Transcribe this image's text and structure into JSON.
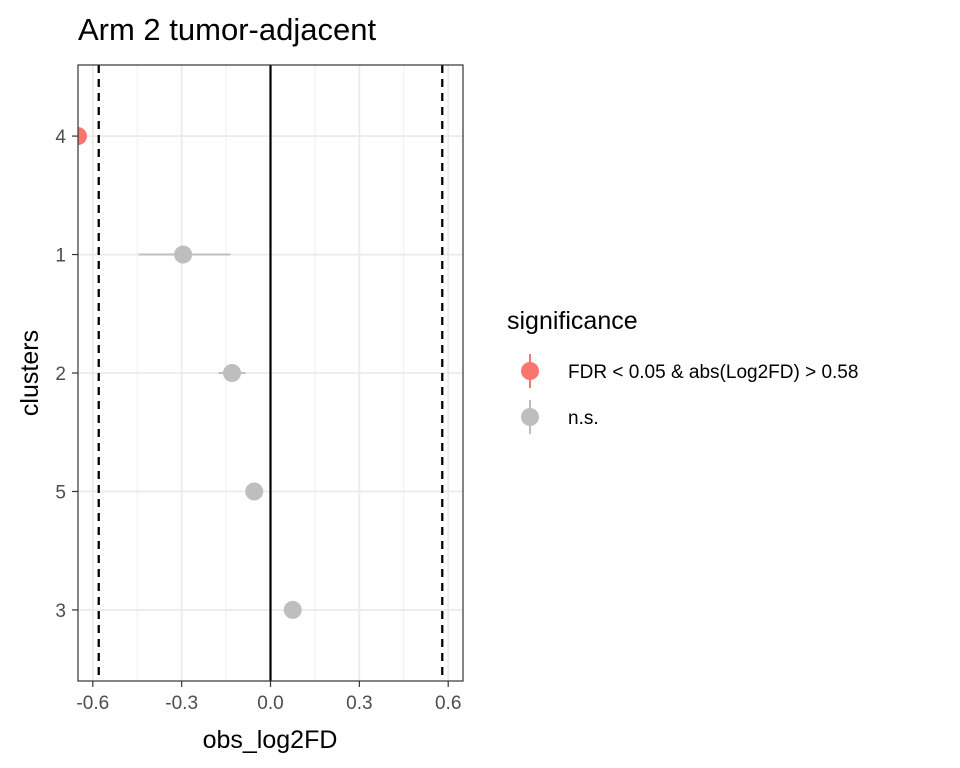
{
  "chart_data": {
    "type": "scatter",
    "title": "Arm 2 tumor-adjacent",
    "xlabel": "obs_log2FD",
    "ylabel": "clusters",
    "xlim": [
      -0.65,
      0.65
    ],
    "x_ticks": [
      -0.6,
      -0.3,
      0.0,
      0.3,
      0.6
    ],
    "x_tick_labels": [
      "-0.6",
      "-0.3",
      "0.0",
      "0.3",
      "0.6"
    ],
    "categories": [
      "4",
      "1",
      "2",
      "5",
      "3"
    ],
    "grid": true,
    "reference_lines": {
      "solid": [
        0.0
      ],
      "dashed": [
        -0.58,
        0.58
      ]
    },
    "legend": {
      "title": "significance",
      "position": "right",
      "entries": [
        {
          "label": "FDR < 0.05 & abs(Log2FD) > 0.58",
          "color": "#f8766d"
        },
        {
          "label": "n.s.",
          "color": "#bebebe"
        }
      ]
    },
    "points": [
      {
        "cluster": "4",
        "x": -0.65,
        "lo": -0.65,
        "hi": -0.65,
        "significance": "FDR < 0.05 & abs(Log2FD) > 0.58"
      },
      {
        "cluster": "1",
        "x": -0.295,
        "lo": -0.445,
        "hi": -0.135,
        "significance": "n.s."
      },
      {
        "cluster": "2",
        "x": -0.13,
        "lo": -0.175,
        "hi": -0.085,
        "significance": "n.s."
      },
      {
        "cluster": "5",
        "x": -0.055,
        "lo": -0.055,
        "hi": -0.055,
        "significance": "n.s."
      },
      {
        "cluster": "3",
        "x": 0.075,
        "lo": 0.075,
        "hi": 0.075,
        "significance": "n.s."
      }
    ]
  }
}
